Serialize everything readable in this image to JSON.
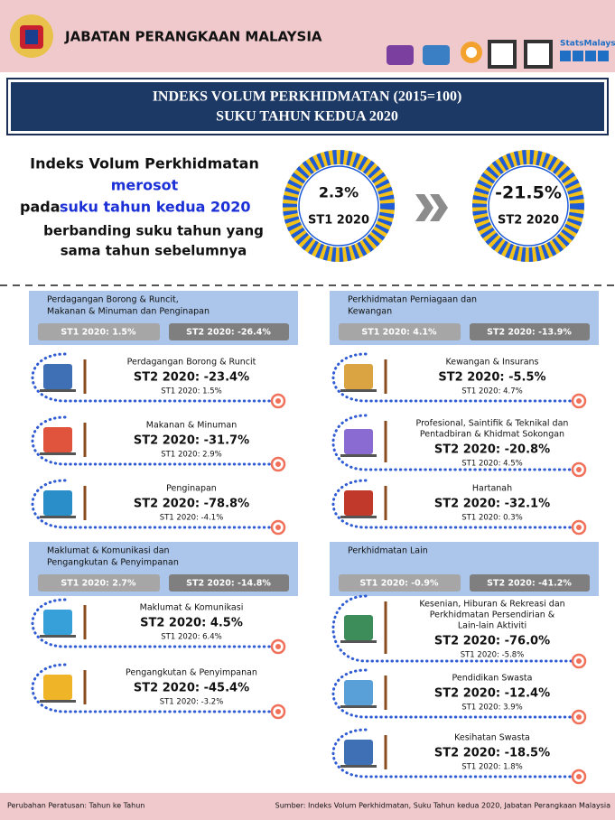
{
  "header": {
    "org": "JABATAN PERANGKAAN MALAYSIA",
    "brand": "StatsMalaysia"
  },
  "banner": {
    "line1": "INDEKS VOLUM PERKHIDMATAN (2015=100)",
    "line2": "SUKU TAHUN KEDUA 2020"
  },
  "intro": {
    "line1": "Indeks Volum Perkhidmatan",
    "line2": "merosot",
    "line3_prefix": "pada",
    "line3_highlight": "suku tahun kedua 2020",
    "line4": "berbanding suku tahun yang",
    "line5": "sama tahun sebelumnya"
  },
  "circles": [
    {
      "value": "2.3%",
      "label": "ST1 2020"
    },
    {
      "value": "-21.5%",
      "label": "ST2 2020"
    }
  ],
  "sections": [
    {
      "title": [
        "Perdagangan Borong & Runcit,",
        "Makanan & Minuman dan Penginapan"
      ],
      "st1": "ST1 2020: 1.5%",
      "st2": "ST2 2020: -26.4%",
      "items": [
        {
          "name": [
            "Perdagangan Borong & Runcit"
          ],
          "st2": "ST2 2020: -23.4%",
          "st1": "ST1 2020: 1.5%"
        },
        {
          "name": [
            "Makanan & Minuman"
          ],
          "st2": "ST2 2020: -31.7%",
          "st1": "ST1 2020: 2.9%"
        },
        {
          "name": [
            "Penginapan"
          ],
          "st2": "ST2 2020: -78.8%",
          "st1": "ST1 2020: -4.1%"
        }
      ]
    },
    {
      "title": [
        "Maklumat & Komunikasi dan",
        "Pengangkutan & Penyimpanan"
      ],
      "st1": "ST1 2020: 2.7%",
      "st2": "ST2 2020: -14.8%",
      "items": [
        {
          "name": [
            "Maklumat & Komunikasi"
          ],
          "st2": "ST2 2020: 4.5%",
          "st1": "ST1 2020: 6.4%"
        },
        {
          "name": [
            "Pengangkutan & Penyimpanan"
          ],
          "st2": "ST2 2020: -45.4%",
          "st1": "ST1 2020: -3.2%"
        }
      ]
    },
    {
      "title": [
        "Perkhidmatan Perniagaan dan",
        "Kewangan"
      ],
      "st1": "ST1 2020: 4.1%",
      "st2": "ST2 2020: -13.9%",
      "items": [
        {
          "name": [
            "Kewangan & Insurans"
          ],
          "st2": "ST2 2020: -5.5%",
          "st1": "ST1 2020: 4.7%"
        },
        {
          "name": [
            "Profesional, Saintifik & Teknikal dan",
            "Pentadbiran & Khidmat Sokongan"
          ],
          "st2": "ST2 2020: -20.8%",
          "st1": "ST1 2020: 4.5%"
        },
        {
          "name": [
            "Hartanah"
          ],
          "st2": "ST2 2020: -32.1%",
          "st1": "ST1 2020: 0.3%"
        }
      ]
    },
    {
      "title": [
        "Perkhidmatan Lain"
      ],
      "st1": "ST1 2020: -0.9%",
      "st2": "ST2 2020: -41.2%",
      "items": [
        {
          "name": [
            "Kesenian, Hiburan & Rekreasi dan",
            "Perkhidmatan Persendirian &",
            "Lain-lain Aktiviti"
          ],
          "st2": "ST2 2020: -76.0%",
          "st1": "ST1 2020: -5.8%"
        },
        {
          "name": [
            "Pendidikan Swasta"
          ],
          "st2": "ST2 2020: -12.4%",
          "st1": "ST1 2020: 3.9%"
        },
        {
          "name": [
            "Kesihatan Swasta"
          ],
          "st2": "ST2 2020: -18.5%",
          "st1": "ST1 2020: 1.8%"
        }
      ]
    }
  ],
  "footer": {
    "note": "Perubahan Peratusan: Tahun ke Tahun",
    "source": "Sumber: Indeks Volum Perkhidmatan, Suku Tahun kedua 2020, Jabatan Perangkaan Malaysia"
  }
}
